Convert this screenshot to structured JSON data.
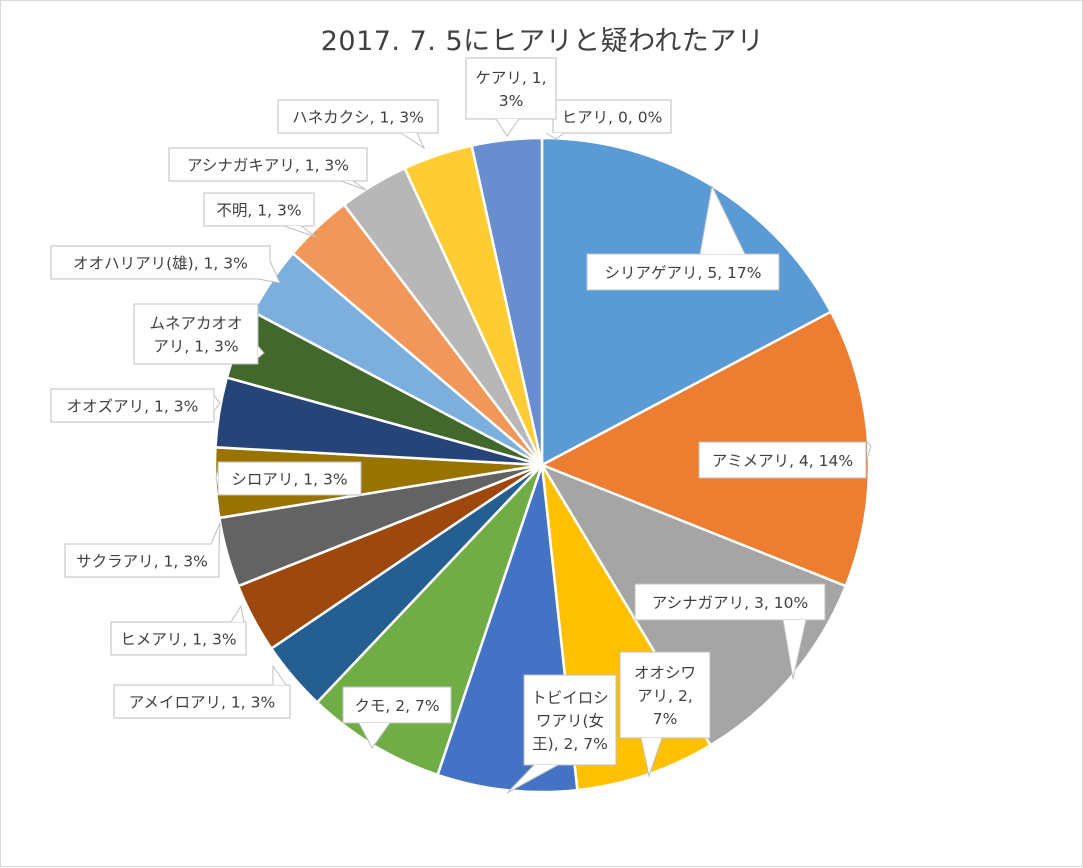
{
  "chart_data": {
    "type": "pie",
    "title": "2017. 7. 5にヒアリと疑われたアリ",
    "slices": [
      {
        "name": "ヒアリ",
        "value": 0,
        "pct": "0%",
        "label": [
          "ヒアリ, 0, 0%"
        ],
        "color": "#4472C4"
      },
      {
        "name": "シリアゲアリ",
        "value": 5,
        "pct": "17%",
        "label": [
          "シリアゲアリ, 5, 17%"
        ],
        "color": "#5B9BD5"
      },
      {
        "name": "アミメアリ",
        "value": 4,
        "pct": "14%",
        "label": [
          "アミメアリ, 4, 14%"
        ],
        "color": "#ED7D31"
      },
      {
        "name": "アシナガアリ",
        "value": 3,
        "pct": "10%",
        "label": [
          "アシナガアリ, 3, 10%"
        ],
        "color": "#A5A5A5"
      },
      {
        "name": "オオシワアリ",
        "value": 2,
        "pct": "7%",
        "label": [
          "オオシワ",
          "アリ, 2,",
          "7%"
        ],
        "color": "#FFC000"
      },
      {
        "name": "トビイロシワアリ(女王)",
        "value": 2,
        "pct": "7%",
        "label": [
          "トビイロシ",
          "ワアリ(女",
          "王), 2, 7%"
        ],
        "color": "#4472C4"
      },
      {
        "name": "クモ",
        "value": 2,
        "pct": "7%",
        "label": [
          "クモ, 2, 7%"
        ],
        "color": "#70AD47"
      },
      {
        "name": "アメイロアリ",
        "value": 1,
        "pct": "3%",
        "label": [
          "アメイロアリ, 1, 3%"
        ],
        "color": "#255E91"
      },
      {
        "name": "ヒメアリ",
        "value": 1,
        "pct": "3%",
        "label": [
          "ヒメアリ, 1, 3%"
        ],
        "color": "#9E480E"
      },
      {
        "name": "サクラアリ",
        "value": 1,
        "pct": "3%",
        "label": [
          "サクラアリ, 1, 3%"
        ],
        "color": "#636363"
      },
      {
        "name": "シロアリ",
        "value": 1,
        "pct": "3%",
        "label": [
          "シロアリ, 1, 3%"
        ],
        "color": "#997300"
      },
      {
        "name": "オオズアリ",
        "value": 1,
        "pct": "3%",
        "label": [
          "オオズアリ, 1, 3%"
        ],
        "color": "#264478"
      },
      {
        "name": "ムネアカオオアリ",
        "value": 1,
        "pct": "3%",
        "label": [
          "ムネアカオオ",
          "アリ, 1, 3%"
        ],
        "color": "#43682B"
      },
      {
        "name": "オオハリアリ(雄)",
        "value": 1,
        "pct": "3%",
        "label": [
          "オオハリアリ(雄), 1, 3%"
        ],
        "color": "#7CAFDD"
      },
      {
        "name": "不明",
        "value": 1,
        "pct": "3%",
        "label": [
          "不明, 1, 3%"
        ],
        "color": "#F1975A"
      },
      {
        "name": "アシナガキアリ",
        "value": 1,
        "pct": "3%",
        "label": [
          "アシナガキアリ, 1, 3%"
        ],
        "color": "#B7B7B7"
      },
      {
        "name": "ハネカクシ",
        "value": 1,
        "pct": "3%",
        "label": [
          "ハネカクシ, 1, 3%"
        ],
        "color": "#FFCD33"
      },
      {
        "name": "ケアリ",
        "value": 1,
        "pct": "3%",
        "label": [
          "ケアリ, 1,",
          "3%"
        ],
        "color": "#698ED0"
      }
    ],
    "legend": "none",
    "data_labels": "callout"
  }
}
